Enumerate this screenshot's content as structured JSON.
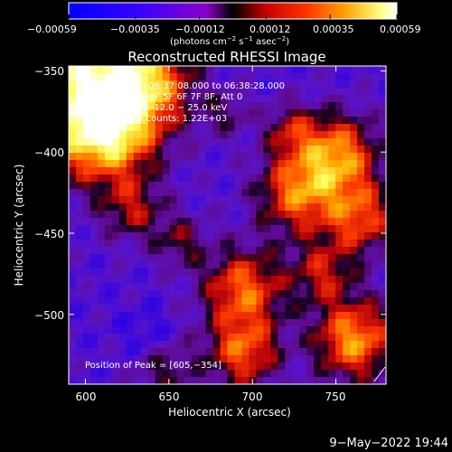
{
  "chart_data": {
    "type": "heatmap",
    "title": "Reconstructed RHESSI Image",
    "xlabel": "Heliocentric X (arcsec)",
    "ylabel": "Heliocentric Y (arcsec)",
    "xlim": [
      590,
      780
    ],
    "ylim": [
      -543,
      -347
    ],
    "x_ticks": [
      600,
      650,
      700,
      750
    ],
    "y_ticks": [
      -350,
      -400,
      -450,
      -500
    ],
    "x_tick_labels": [
      "600",
      "650",
      "700",
      "750"
    ],
    "y_tick_labels": [
      "−350",
      "−400",
      "−450",
      "−500"
    ],
    "colorbar": {
      "ticks": [
        "−0.00059",
        "−0.00035",
        "−0.00012",
        "0.00012",
        "0.00035",
        "0.00059"
      ],
      "range": [
        -0.00059,
        0.00059
      ],
      "label_main": "(photons cm",
      "label_exp1": "−2",
      "label_mid": " s",
      "label_exp2": "−1",
      "label_end": " asec",
      "label_exp3": "−2",
      "label_close": ")",
      "colormap": "blue-purple-red-yellow-white"
    },
    "annotations": [
      "23−Jul−2010 06:37:08.000 to 06:38:28.000",
      "Detectors: 3F 4F 5F 6F 7F 8F, Att 0",
      "Energy Range: 12.0 − 25.0 keV",
      "Clean    Total counts: 1.22E+03"
    ],
    "peak_text": "Position of Peak = [605,−354]",
    "peak": [
      605,
      -354
    ]
  },
  "footer": {
    "date": "9−May−2022 19:44"
  }
}
